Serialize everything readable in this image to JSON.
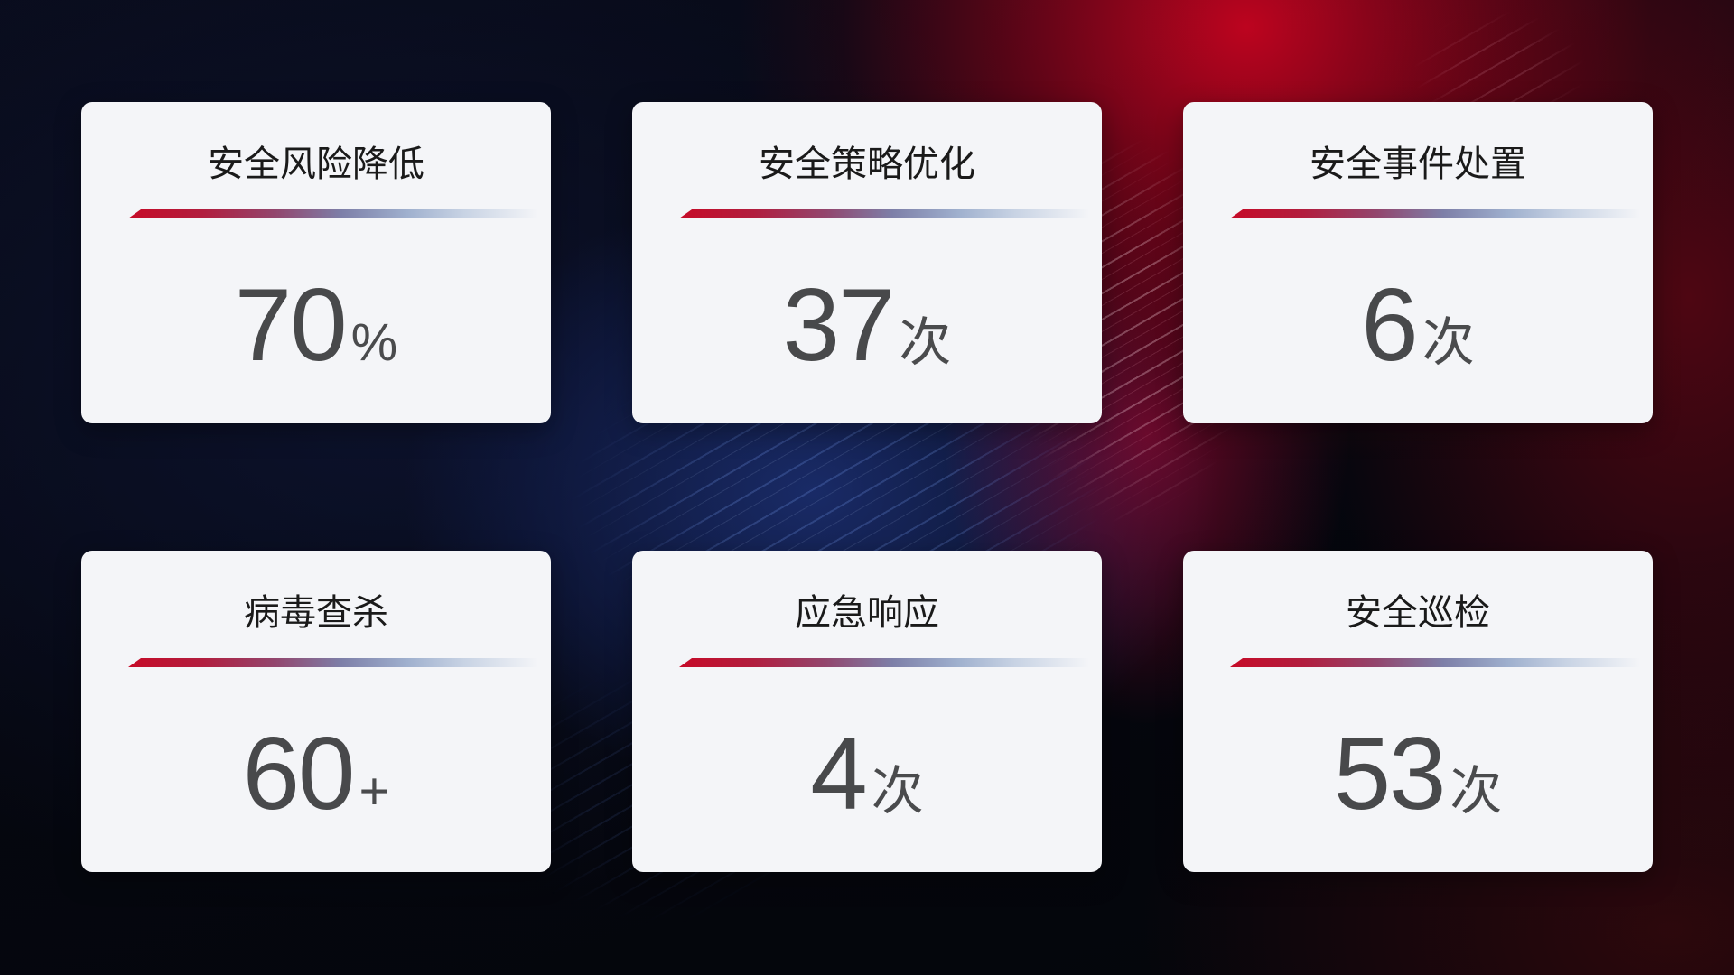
{
  "cards": [
    {
      "title": "安全风险降低",
      "value": "70",
      "unit": "%"
    },
    {
      "title": "安全策略优化",
      "value": "37",
      "unit": "次"
    },
    {
      "title": "安全事件处置",
      "value": "6",
      "unit": "次"
    },
    {
      "title": "病毒查杀",
      "value": "60",
      "unit": "+"
    },
    {
      "title": "应急响应",
      "value": "4",
      "unit": "次"
    },
    {
      "title": "安全巡检",
      "value": "53",
      "unit": "次"
    }
  ],
  "colors": {
    "card_background": "#f4f5f8",
    "title_color": "#1a1a1a",
    "value_color": "#48494b",
    "divider_red": "#c60b28",
    "divider_steel_blue": "#9fb0ce",
    "background_navy": "#0d1533",
    "background_blue_glow": "#1c3074",
    "background_red_glow": "#b00018",
    "background_dark": "#04050b"
  }
}
